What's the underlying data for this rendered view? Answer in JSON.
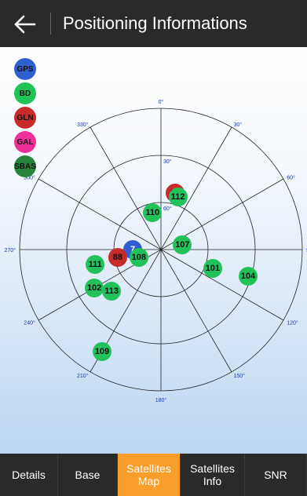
{
  "header": {
    "title": "Positioning Informations",
    "back_icon": "arrow-left-icon"
  },
  "legend": [
    {
      "label": "GPS",
      "color": "#2f5fce"
    },
    {
      "label": "BD",
      "color": "#22c25a"
    },
    {
      "label": "GLN",
      "color": "#c92a2a"
    },
    {
      "label": "GAL",
      "color": "#f0309a"
    },
    {
      "label": "SBAS",
      "color": "#27853b"
    }
  ],
  "sky_map": {
    "elevation_labels": [
      "0°",
      "30°",
      "60°",
      "90°"
    ],
    "azimuth_labels": [
      "0°",
      "30°",
      "60°",
      "90°",
      "120°",
      "150°",
      "180°",
      "210°",
      "240°",
      "270°",
      "300°",
      "330°"
    ],
    "satellites": [
      {
        "id": "7",
        "system": "GPS",
        "azimuth": 270,
        "elevation": 72
      },
      {
        "id": "87",
        "system": "GLN",
        "azimuth": 14,
        "elevation": 53
      },
      {
        "id": "112",
        "system": "BD",
        "azimuth": 18,
        "elevation": 55
      },
      {
        "id": "110",
        "system": "BD",
        "azimuth": 347,
        "elevation": 66
      },
      {
        "id": "107",
        "system": "BD",
        "azimuth": 78,
        "elevation": 76
      },
      {
        "id": "88",
        "system": "GLN",
        "azimuth": 260,
        "elevation": 62
      },
      {
        "id": "108",
        "system": "BD",
        "azimuth": 250,
        "elevation": 75
      },
      {
        "id": "111",
        "system": "BD",
        "azimuth": 257,
        "elevation": 47
      },
      {
        "id": "102",
        "system": "BD",
        "azimuth": 240,
        "elevation": 41
      },
      {
        "id": "113",
        "system": "BD",
        "azimuth": 230,
        "elevation": 49
      },
      {
        "id": "101",
        "system": "BD",
        "azimuth": 110,
        "elevation": 55
      },
      {
        "id": "104",
        "system": "BD",
        "azimuth": 107,
        "elevation": 32
      },
      {
        "id": "109",
        "system": "BD",
        "azimuth": 210,
        "elevation": 15
      }
    ]
  },
  "tabs": [
    {
      "label": "Details",
      "active": false
    },
    {
      "label": "Base",
      "active": false
    },
    {
      "label": "Satellites\nMap",
      "active": true
    },
    {
      "label": "Satellites\nInfo",
      "active": false
    },
    {
      "label": "SNR",
      "active": false
    }
  ],
  "colors": {
    "header_bg": "#2a2a2a",
    "active_tab": "#f99d2b",
    "grid_line": "#222222",
    "label_text": "#1a3aa8"
  }
}
